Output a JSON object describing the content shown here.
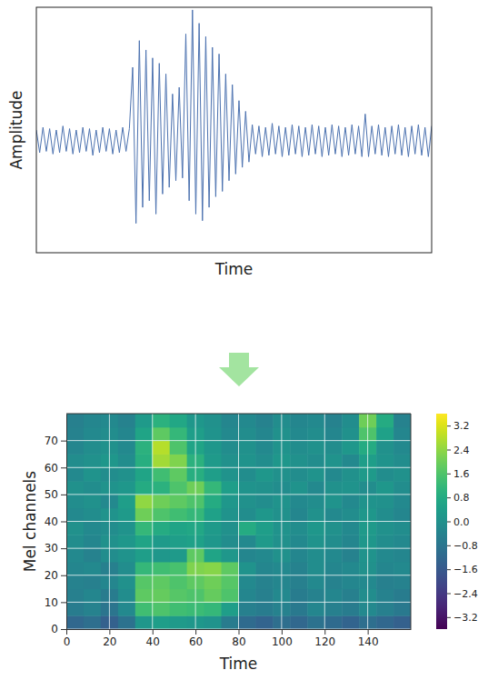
{
  "chart_data": [
    {
      "type": "line",
      "x_label": "Time",
      "y_label": "Amplitude",
      "tick_labels": false,
      "color": "#4c72b0",
      "xlim": [
        0,
        119
      ],
      "ylim": [
        -0.84,
        1.0
      ],
      "x": [
        0,
        1,
        2,
        3,
        4,
        5,
        6,
        7,
        8,
        9,
        10,
        11,
        12,
        13,
        14,
        15,
        16,
        17,
        18,
        19,
        20,
        21,
        22,
        23,
        24,
        25,
        26,
        27,
        28,
        29,
        30,
        31,
        32,
        33,
        34,
        35,
        36,
        37,
        38,
        39,
        40,
        41,
        42,
        43,
        44,
        45,
        46,
        47,
        48,
        49,
        50,
        51,
        52,
        53,
        54,
        55,
        56,
        57,
        58,
        59,
        60,
        61,
        62,
        63,
        64,
        65,
        66,
        67,
        68,
        69,
        70,
        71,
        72,
        73,
        74,
        75,
        76,
        77,
        78,
        79,
        80,
        81,
        82,
        83,
        84,
        85,
        86,
        87,
        88,
        89,
        90,
        91,
        92,
        93,
        94,
        95,
        96,
        97,
        98,
        99,
        100,
        101,
        102,
        103,
        104,
        105,
        106,
        107,
        108,
        109,
        110,
        111,
        112,
        113,
        114,
        115,
        116,
        117,
        118,
        119
      ],
      "values": [
        0.08,
        -0.09,
        0.1,
        -0.08,
        0.09,
        -0.1,
        0.08,
        -0.09,
        0.11,
        -0.08,
        0.09,
        -0.1,
        0.08,
        -0.09,
        0.1,
        -0.08,
        0.09,
        -0.11,
        0.08,
        -0.09,
        0.1,
        -0.08,
        0.09,
        -0.1,
        0.08,
        -0.09,
        0.1,
        -0.08,
        0.09,
        0.55,
        -0.62,
        0.75,
        -0.5,
        0.68,
        -0.45,
        0.62,
        -0.55,
        0.58,
        -0.4,
        0.5,
        -0.35,
        0.35,
        -0.3,
        0.4,
        -0.28,
        0.8,
        -0.45,
        0.98,
        -0.55,
        0.88,
        -0.6,
        0.78,
        -0.5,
        0.7,
        -0.42,
        0.65,
        -0.38,
        0.5,
        -0.3,
        0.42,
        -0.25,
        0.3,
        -0.2,
        0.22,
        -0.16,
        0.12,
        -0.1,
        0.11,
        -0.12,
        0.1,
        -0.11,
        0.13,
        -0.1,
        0.11,
        -0.12,
        0.1,
        -0.11,
        0.12,
        -0.1,
        0.11,
        -0.12,
        0.1,
        -0.11,
        0.12,
        -0.1,
        0.11,
        -0.12,
        0.1,
        -0.11,
        0.12,
        -0.1,
        0.11,
        -0.12,
        0.1,
        -0.11,
        0.12,
        -0.1,
        0.11,
        -0.12,
        0.2,
        -0.12,
        0.11,
        -0.1,
        0.12,
        -0.11,
        0.1,
        -0.12,
        0.11,
        -0.1,
        0.12,
        -0.11,
        0.1,
        -0.12,
        0.11,
        -0.1,
        0.12,
        -0.11,
        0.1,
        -0.12,
        0.11
      ]
    },
    {
      "type": "heatmap",
      "x_label": "Time",
      "y_label": "Mel channels",
      "grid": true,
      "xlim": [
        0,
        160
      ],
      "ylim": [
        0,
        80
      ],
      "xticks": [
        0,
        20,
        40,
        60,
        80,
        100,
        120,
        140
      ],
      "yticks": [
        0,
        10,
        20,
        30,
        40,
        50,
        60,
        70
      ],
      "x_bins": [
        0,
        8,
        16,
        24,
        32,
        40,
        48,
        56,
        64,
        72,
        80,
        88,
        96,
        104,
        112,
        120,
        128,
        136,
        144,
        152,
        160
      ],
      "y_bins": [
        0,
        5,
        10,
        15,
        20,
        25,
        30,
        35,
        40,
        45,
        50,
        55,
        60,
        65,
        70,
        75,
        80
      ],
      "cells": [
        [
          -1.2,
          -1.0,
          -1.4,
          -0.9,
          0.2,
          0.4,
          0.3,
          0.2,
          0.1,
          -0.6,
          -1.1,
          -1.3,
          -1.0,
          -1.2,
          -0.9,
          -1.1,
          -1.3,
          -1.0,
          -1.2,
          -1.4
        ],
        [
          -0.6,
          -0.4,
          -0.8,
          -0.2,
          1.4,
          1.6,
          1.4,
          1.3,
          1.2,
          0.4,
          -0.5,
          -0.6,
          -0.4,
          -0.7,
          -0.3,
          -0.5,
          -0.6,
          -0.2,
          -0.5,
          -0.7
        ],
        [
          -0.5,
          -0.3,
          -0.6,
          -0.1,
          1.8,
          1.9,
          1.7,
          1.6,
          1.9,
          1.6,
          -0.3,
          -0.5,
          -0.2,
          -0.6,
          -0.4,
          -0.3,
          -0.5,
          -0.1,
          -0.4,
          -0.6
        ],
        [
          -0.4,
          -0.5,
          -0.3,
          0.0,
          1.7,
          1.8,
          1.6,
          1.8,
          2.0,
          1.7,
          -0.2,
          -0.4,
          -0.3,
          -0.5,
          -0.2,
          -0.4,
          -0.3,
          -0.2,
          -0.5,
          -0.4
        ],
        [
          -0.3,
          -0.2,
          -0.5,
          -0.1,
          1.2,
          1.4,
          1.5,
          2.2,
          2.3,
          1.8,
          0.1,
          -0.3,
          -0.2,
          -0.4,
          -0.1,
          -0.3,
          -0.2,
          0.0,
          -0.3,
          -0.2
        ],
        [
          -0.2,
          -0.4,
          -0.1,
          0.1,
          0.4,
          0.2,
          0.3,
          1.8,
          0.6,
          0.2,
          -0.3,
          -0.2,
          0.0,
          -0.3,
          -0.1,
          -0.2,
          -0.4,
          0.1,
          -0.2,
          -0.3
        ],
        [
          -0.1,
          -0.3,
          0.0,
          0.2,
          0.6,
          0.3,
          0.4,
          0.5,
          0.2,
          -0.1,
          -0.2,
          0.3,
          0.0,
          -0.2,
          0.1,
          -0.1,
          -0.3,
          0.2,
          -0.1,
          -0.2
        ],
        [
          0.0,
          -0.2,
          -0.1,
          0.1,
          1.2,
          0.8,
          0.6,
          0.7,
          0.3,
          0.0,
          0.8,
          0.4,
          0.1,
          -0.1,
          0.2,
          0.0,
          -0.2,
          0.3,
          0.0,
          -0.1
        ],
        [
          -0.2,
          -0.1,
          0.1,
          0.3,
          2.0,
          1.6,
          1.4,
          1.2,
          0.5,
          0.1,
          -0.1,
          0.2,
          0.0,
          -0.3,
          0.0,
          -0.2,
          -0.1,
          0.2,
          -0.1,
          -0.3
        ],
        [
          -0.1,
          0.0,
          -0.2,
          0.4,
          2.4,
          2.0,
          1.8,
          1.6,
          0.8,
          0.2,
          0.0,
          -0.1,
          0.1,
          -0.2,
          -0.1,
          0.1,
          -0.2,
          0.1,
          0.0,
          -0.2
        ],
        [
          0.0,
          -0.1,
          0.1,
          0.2,
          0.8,
          1.0,
          1.6,
          2.0,
          1.2,
          0.4,
          0.1,
          0.0,
          -0.1,
          0.1,
          -0.2,
          0.0,
          0.1,
          -0.1,
          0.2,
          -0.1
        ],
        [
          -0.2,
          0.1,
          -0.1,
          0.0,
          0.6,
          1.4,
          1.8,
          0.9,
          0.4,
          0.1,
          -0.1,
          0.2,
          0.0,
          -0.1,
          0.1,
          -0.2,
          0.0,
          0.3,
          -0.1,
          0.0
        ],
        [
          -0.1,
          0.0,
          0.2,
          -0.1,
          0.9,
          2.6,
          2.2,
          1.0,
          0.3,
          0.0,
          0.1,
          -0.1,
          0.2,
          0.0,
          -0.1,
          0.1,
          -0.2,
          0.4,
          0.1,
          -0.1
        ],
        [
          -0.3,
          -0.1,
          0.0,
          -0.2,
          1.0,
          2.8,
          1.6,
          0.6,
          0.2,
          -0.1,
          0.0,
          -0.2,
          0.1,
          -0.1,
          0.0,
          -0.1,
          0.2,
          0.8,
          0.0,
          -0.2
        ],
        [
          -0.4,
          -0.2,
          -0.1,
          -0.3,
          0.6,
          1.8,
          1.2,
          0.4,
          0.1,
          -0.2,
          -0.1,
          -0.3,
          0.0,
          -0.2,
          -0.1,
          -0.3,
          0.0,
          1.6,
          0.5,
          -0.3
        ],
        [
          -0.5,
          -0.3,
          -0.2,
          -0.4,
          0.3,
          1.0,
          0.7,
          0.2,
          0.0,
          -0.3,
          -0.2,
          -0.4,
          -0.1,
          -0.3,
          -0.2,
          -0.4,
          -0.1,
          2.0,
          0.8,
          -0.4
        ]
      ],
      "colorbar": {
        "range": [
          -3.6,
          3.6
        ],
        "ticks": [
          3.2,
          2.4,
          1.6,
          0.8,
          {
            "value": 0,
            "label": "0.0"
          },
          {
            "value": -0.8,
            "label": "−0.8"
          },
          {
            "value": -1.6,
            "label": "−1.6"
          },
          {
            "value": -2.4,
            "label": "−2.4"
          },
          {
            "value": -3.2,
            "label": "−3.2"
          }
        ]
      }
    }
  ]
}
